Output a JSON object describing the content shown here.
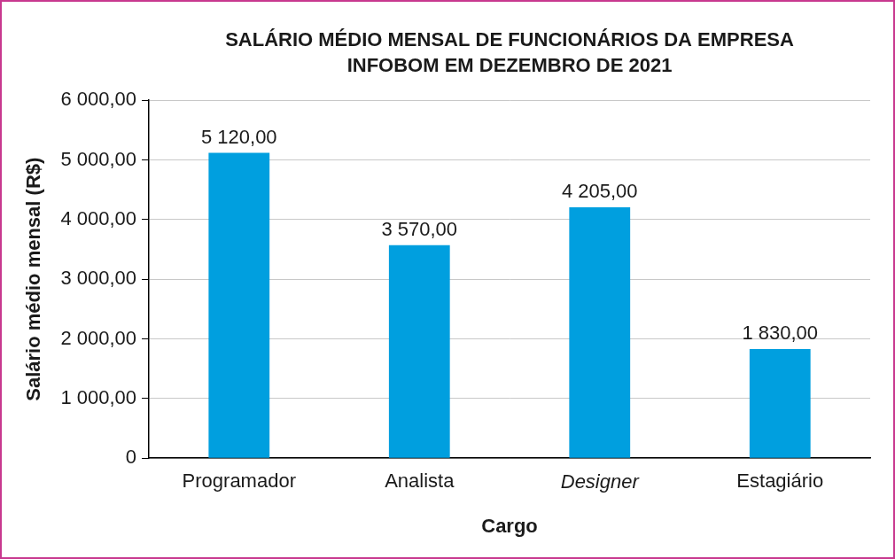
{
  "chart_data": {
    "type": "bar",
    "title": [
      "SALÁRIO MÉDIO MENSAL DE FUNCIONÁRIOS DA EMPRESA",
      "INFOBOM EM DEZEMBRO DE 2021"
    ],
    "x_label": "Cargo",
    "y_label": "Salário médio mensal (R$)",
    "categories": [
      "Programador",
      "Analista",
      "Designer",
      "Estagiário"
    ],
    "values": [
      5120,
      3570,
      4205,
      1830
    ],
    "value_labels": [
      "5 120,00",
      "3 570,00",
      "4 205,00",
      "1 830,00"
    ],
    "color": "#009fdf",
    "ylim": [
      0,
      6000
    ],
    "yticks": [
      0,
      {
        "value": 1000,
        "label": "1 000,00"
      },
      {
        "value": 2000,
        "label": "2 000,00"
      },
      {
        "value": 3000,
        "label": "3 000,00"
      },
      {
        "value": 4000,
        "label": "4 000,00"
      },
      {
        "value": 5000,
        "label": "5 000,00"
      },
      {
        "value": 6000,
        "label": "6 000,00"
      }
    ],
    "grid": true,
    "data_labels": true
  }
}
